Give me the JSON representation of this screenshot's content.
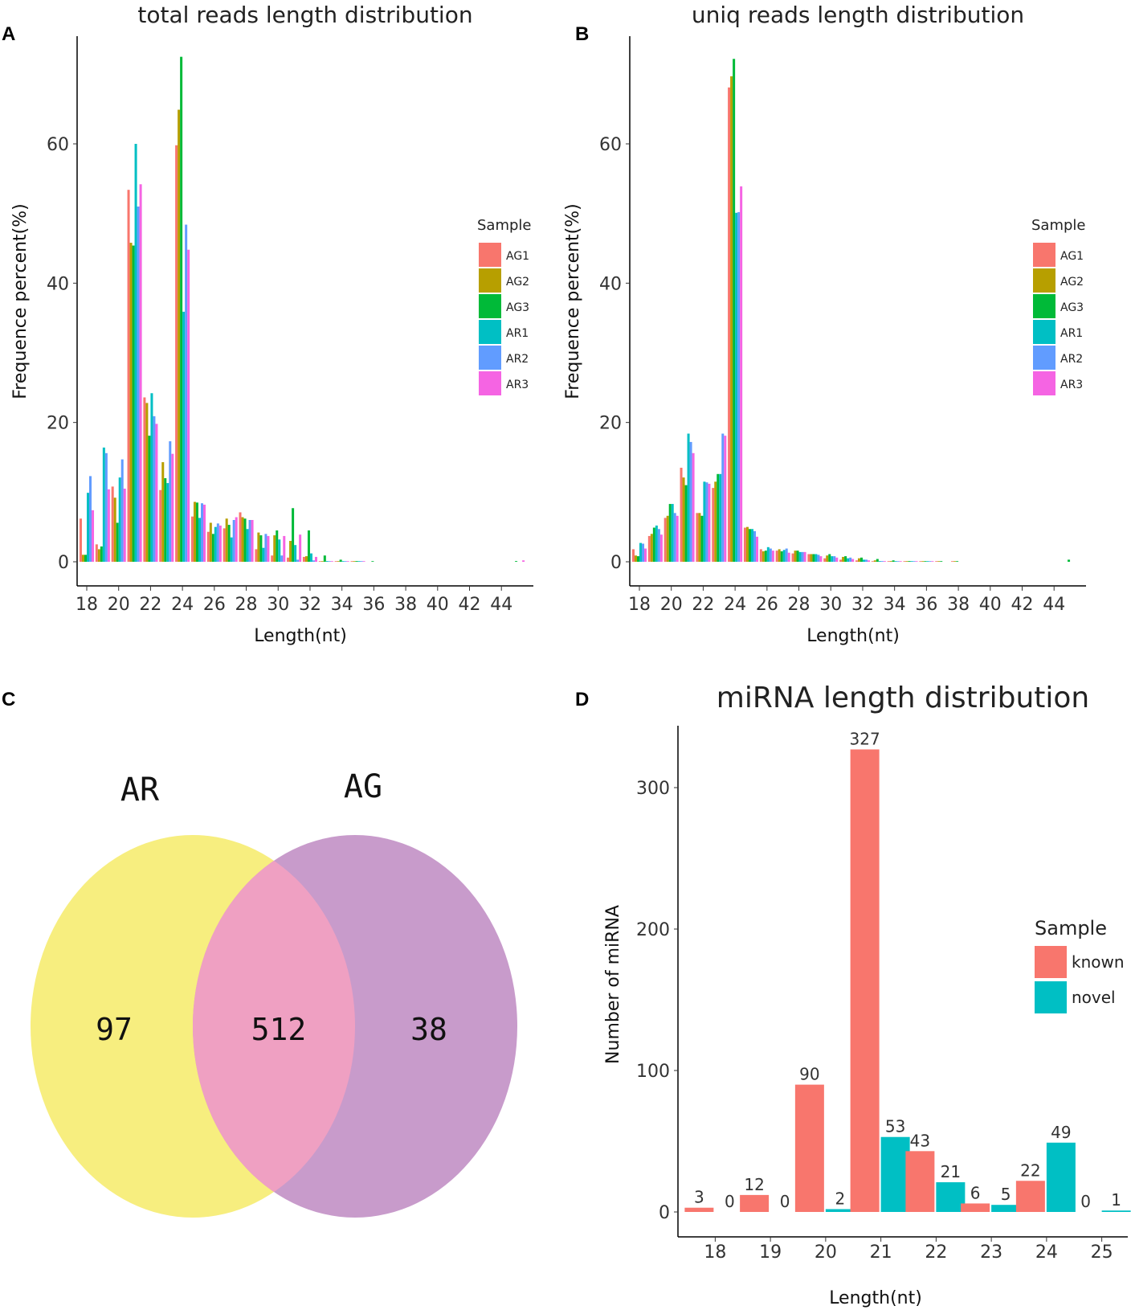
{
  "colors": {
    "AG1": "#F8766D",
    "AG2": "#B79F00",
    "AG3": "#00BA38",
    "AR1": "#00BFC4",
    "AR2": "#619CFF",
    "AR3": "#F564E3",
    "known": "#F8766D",
    "novel": "#00BFC4",
    "venn_ar": "#F7EE7F",
    "venn_ag": "#C89BCB",
    "venn_overlap": "#EFA0C2"
  },
  "chart_data": [
    {
      "panel": "A",
      "type": "bar",
      "title": "total reads length distribution",
      "xlabel": "Length(nt)",
      "ylabel": "Frequence percent(%)",
      "ylim": [
        0,
        75
      ],
      "yticks": [
        "0",
        "20",
        "40",
        "60"
      ],
      "xticks": [
        "18",
        "20",
        "22",
        "24",
        "26",
        "28",
        "30",
        "32",
        "34",
        "36",
        "38",
        "40",
        "42",
        "44"
      ],
      "legend_title": "Sample",
      "legend_position": "right",
      "categories": [
        18,
        19,
        20,
        21,
        22,
        23,
        24,
        25,
        26,
        27,
        28,
        29,
        30,
        31,
        32,
        33,
        34,
        35,
        36,
        37,
        38,
        39,
        40,
        41,
        42,
        43,
        44,
        45
      ],
      "series": [
        {
          "name": "AG1",
          "values": [
            6.2,
            2.5,
            10.8,
            53.4,
            23.6,
            10.3,
            59.8,
            6.5,
            4.3,
            4.8,
            7.1,
            1.8,
            0.9,
            0.6,
            0.7,
            0.05,
            0.02,
            0.01,
            0,
            0,
            0,
            0,
            0,
            0,
            0,
            0,
            0,
            0
          ]
        },
        {
          "name": "AG2",
          "values": [
            1.0,
            1.8,
            9.2,
            45.8,
            22.8,
            14.3,
            64.9,
            8.6,
            5.6,
            6.2,
            6.4,
            4.2,
            3.8,
            3.0,
            0.8,
            0.05,
            0.02,
            0.01,
            0,
            0,
            0,
            0,
            0,
            0,
            0,
            0,
            0,
            0
          ]
        },
        {
          "name": "AG3",
          "values": [
            1.0,
            2.2,
            5.6,
            45.4,
            18.1,
            12.0,
            72.5,
            8.5,
            4.0,
            5.3,
            6.2,
            3.8,
            4.5,
            7.7,
            4.5,
            0.9,
            0.3,
            0.1,
            0.05,
            0,
            0,
            0,
            0,
            0,
            0,
            0,
            0,
            0.1
          ]
        },
        {
          "name": "AR1",
          "values": [
            9.9,
            16.4,
            12.1,
            60.0,
            24.2,
            11.3,
            35.9,
            6.3,
            5.0,
            3.5,
            4.7,
            2.0,
            3.2,
            2.4,
            1.2,
            0.1,
            0.03,
            0.01,
            0,
            0,
            0,
            0,
            0,
            0,
            0,
            0,
            0,
            0
          ]
        },
        {
          "name": "AR2",
          "values": [
            12.3,
            15.6,
            14.7,
            51.0,
            20.9,
            17.3,
            48.4,
            8.4,
            5.5,
            6.0,
            6.0,
            4.0,
            0.9,
            0.3,
            0.2,
            0.05,
            0.02,
            0.01,
            0,
            0,
            0,
            0,
            0,
            0,
            0,
            0,
            0,
            0
          ]
        },
        {
          "name": "AR3",
          "values": [
            7.4,
            10.4,
            10.5,
            54.2,
            19.8,
            15.5,
            44.8,
            8.2,
            5.2,
            6.4,
            6.0,
            3.7,
            3.7,
            3.9,
            0.7,
            0.05,
            0.02,
            0.01,
            0,
            0,
            0,
            0,
            0,
            0,
            0,
            0,
            0,
            0.2
          ]
        }
      ]
    },
    {
      "panel": "B",
      "type": "bar",
      "title": "uniq reads length distribution",
      "xlabel": "Length(nt)",
      "ylabel": "Frequence percent(%)",
      "ylim": [
        0,
        75
      ],
      "yticks": [
        "0",
        "20",
        "40",
        "60"
      ],
      "xticks": [
        "18",
        "20",
        "22",
        "24",
        "26",
        "28",
        "30",
        "32",
        "34",
        "36",
        "38",
        "40",
        "42",
        "44"
      ],
      "legend_title": "Sample",
      "legend_position": "right",
      "categories": [
        18,
        19,
        20,
        21,
        22,
        23,
        24,
        25,
        26,
        27,
        28,
        29,
        30,
        31,
        32,
        33,
        34,
        35,
        36,
        37,
        38,
        39,
        40,
        41,
        42,
        43,
        44,
        45
      ],
      "series": [
        {
          "name": "AG1",
          "values": [
            1.8,
            3.7,
            6.3,
            13.5,
            7.0,
            10.6,
            68.1,
            4.9,
            1.8,
            1.6,
            1.2,
            1.1,
            0.5,
            0.3,
            0.2,
            0.05,
            0.05,
            0.02,
            0.01,
            0.01,
            0.01,
            0,
            0,
            0,
            0,
            0,
            0,
            0
          ]
        },
        {
          "name": "AG2",
          "values": [
            0.9,
            4.0,
            6.6,
            12.1,
            7.0,
            11.5,
            69.7,
            5.0,
            1.5,
            1.8,
            1.6,
            1.1,
            0.9,
            0.7,
            0.5,
            0.2,
            0.1,
            0.05,
            0.02,
            0.01,
            0.01,
            0,
            0,
            0,
            0,
            0,
            0,
            0
          ]
        },
        {
          "name": "AG3",
          "values": [
            0.8,
            4.9,
            8.3,
            11.0,
            6.6,
            12.6,
            72.2,
            4.7,
            1.6,
            1.5,
            1.6,
            1.1,
            1.1,
            0.8,
            0.6,
            0.4,
            0.2,
            0.1,
            0.05,
            0.02,
            0.01,
            0,
            0,
            0,
            0,
            0,
            0,
            0.3
          ]
        },
        {
          "name": "AR1",
          "values": [
            2.7,
            5.2,
            8.3,
            18.4,
            11.5,
            12.6,
            50.1,
            4.7,
            2.1,
            1.7,
            1.4,
            1.1,
            0.8,
            0.5,
            0.3,
            0.1,
            0.05,
            0.02,
            0.01,
            0,
            0,
            0,
            0,
            0,
            0,
            0,
            0,
            0
          ]
        },
        {
          "name": "AR2",
          "values": [
            2.6,
            4.7,
            7.0,
            17.2,
            11.4,
            18.4,
            50.2,
            4.4,
            1.9,
            1.9,
            1.4,
            1.0,
            0.8,
            0.6,
            0.3,
            0.1,
            0.05,
            0.02,
            0.01,
            0,
            0,
            0,
            0,
            0,
            0,
            0,
            0,
            0
          ]
        },
        {
          "name": "AR3",
          "values": [
            1.9,
            3.9,
            6.6,
            15.6,
            11.2,
            18.1,
            53.9,
            3.6,
            1.6,
            1.3,
            1.4,
            0.8,
            0.6,
            0.4,
            0.2,
            0.1,
            0.05,
            0.02,
            0.01,
            0,
            0,
            0,
            0,
            0,
            0,
            0,
            0,
            0
          ]
        }
      ]
    },
    {
      "panel": "C",
      "type": "venn",
      "sets": [
        {
          "name": "AR",
          "only": "97"
        },
        {
          "name": "AG",
          "only": "38"
        }
      ],
      "intersection": "512"
    },
    {
      "panel": "D",
      "type": "bar",
      "title": "miRNA length distribution",
      "xlabel": "Length(nt)",
      "ylabel": "Number of miRNA",
      "ylim": [
        0,
        340
      ],
      "yticks": [
        "0",
        "100",
        "200",
        "300"
      ],
      "legend_title": "Sample",
      "legend_position": "right",
      "categories": [
        "18",
        "19",
        "20",
        "21",
        "22",
        "23",
        "24",
        "25"
      ],
      "series": [
        {
          "name": "known",
          "values": [
            3,
            12,
            90,
            327,
            43,
            6,
            22,
            0
          ]
        },
        {
          "name": "novel",
          "values": [
            0,
            0,
            2,
            53,
            21,
            5,
            49,
            1
          ]
        }
      ]
    }
  ]
}
